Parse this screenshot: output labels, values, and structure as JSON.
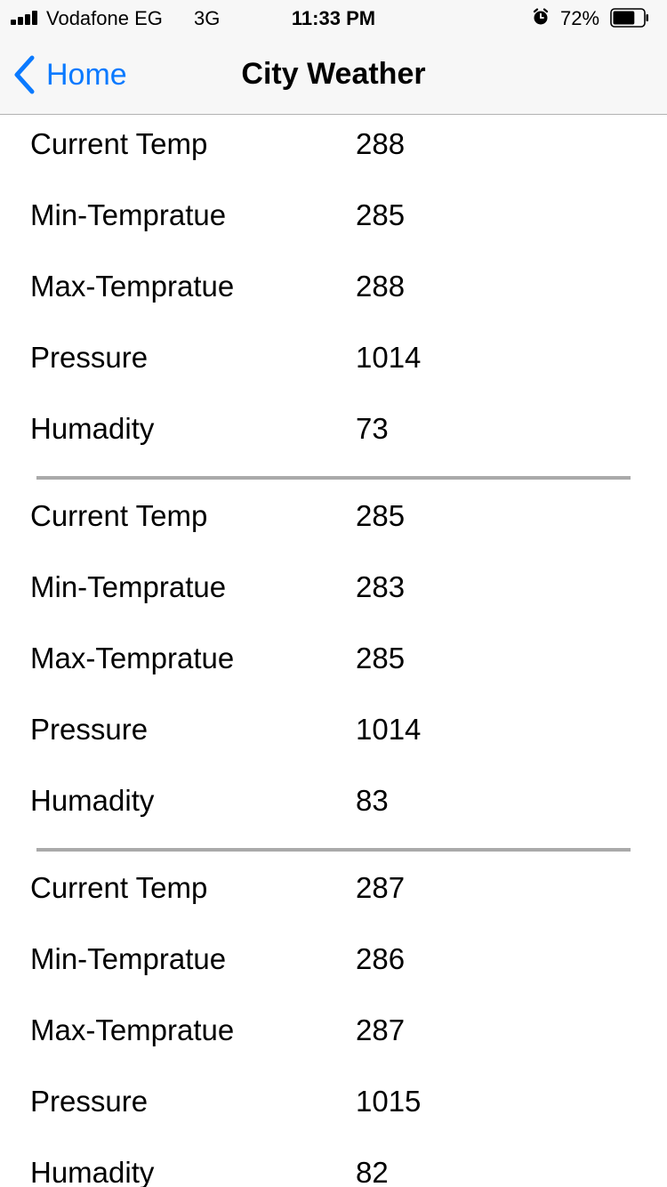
{
  "status_bar": {
    "carrier": "Vodafone EG",
    "network": "3G",
    "time": "11:33 PM",
    "battery_percent": "72%",
    "battery_level": 0.72,
    "icons": [
      "signal-icon",
      "alarm-icon",
      "battery-icon"
    ]
  },
  "nav": {
    "back_label": "Home",
    "title": "City Weather",
    "accent_color": "#0a7aff"
  },
  "records": [
    [
      {
        "label": "Current Temp",
        "value": "288"
      },
      {
        "label": "Min-Tempratue",
        "value": "285"
      },
      {
        "label": "Max-Tempratue",
        "value": "288"
      },
      {
        "label": "Pressure",
        "value": "1014"
      },
      {
        "label": "Humadity",
        "value": "73"
      }
    ],
    [
      {
        "label": "Current Temp",
        "value": "285"
      },
      {
        "label": "Min-Tempratue",
        "value": "283"
      },
      {
        "label": "Max-Tempratue",
        "value": "285"
      },
      {
        "label": "Pressure",
        "value": "1014"
      },
      {
        "label": "Humadity",
        "value": "83"
      }
    ],
    [
      {
        "label": "Current Temp",
        "value": "287"
      },
      {
        "label": "Min-Tempratue",
        "value": "286"
      },
      {
        "label": "Max-Tempratue",
        "value": "287"
      },
      {
        "label": "Pressure",
        "value": "1015"
      },
      {
        "label": "Humadity",
        "value": "82"
      }
    ]
  ]
}
